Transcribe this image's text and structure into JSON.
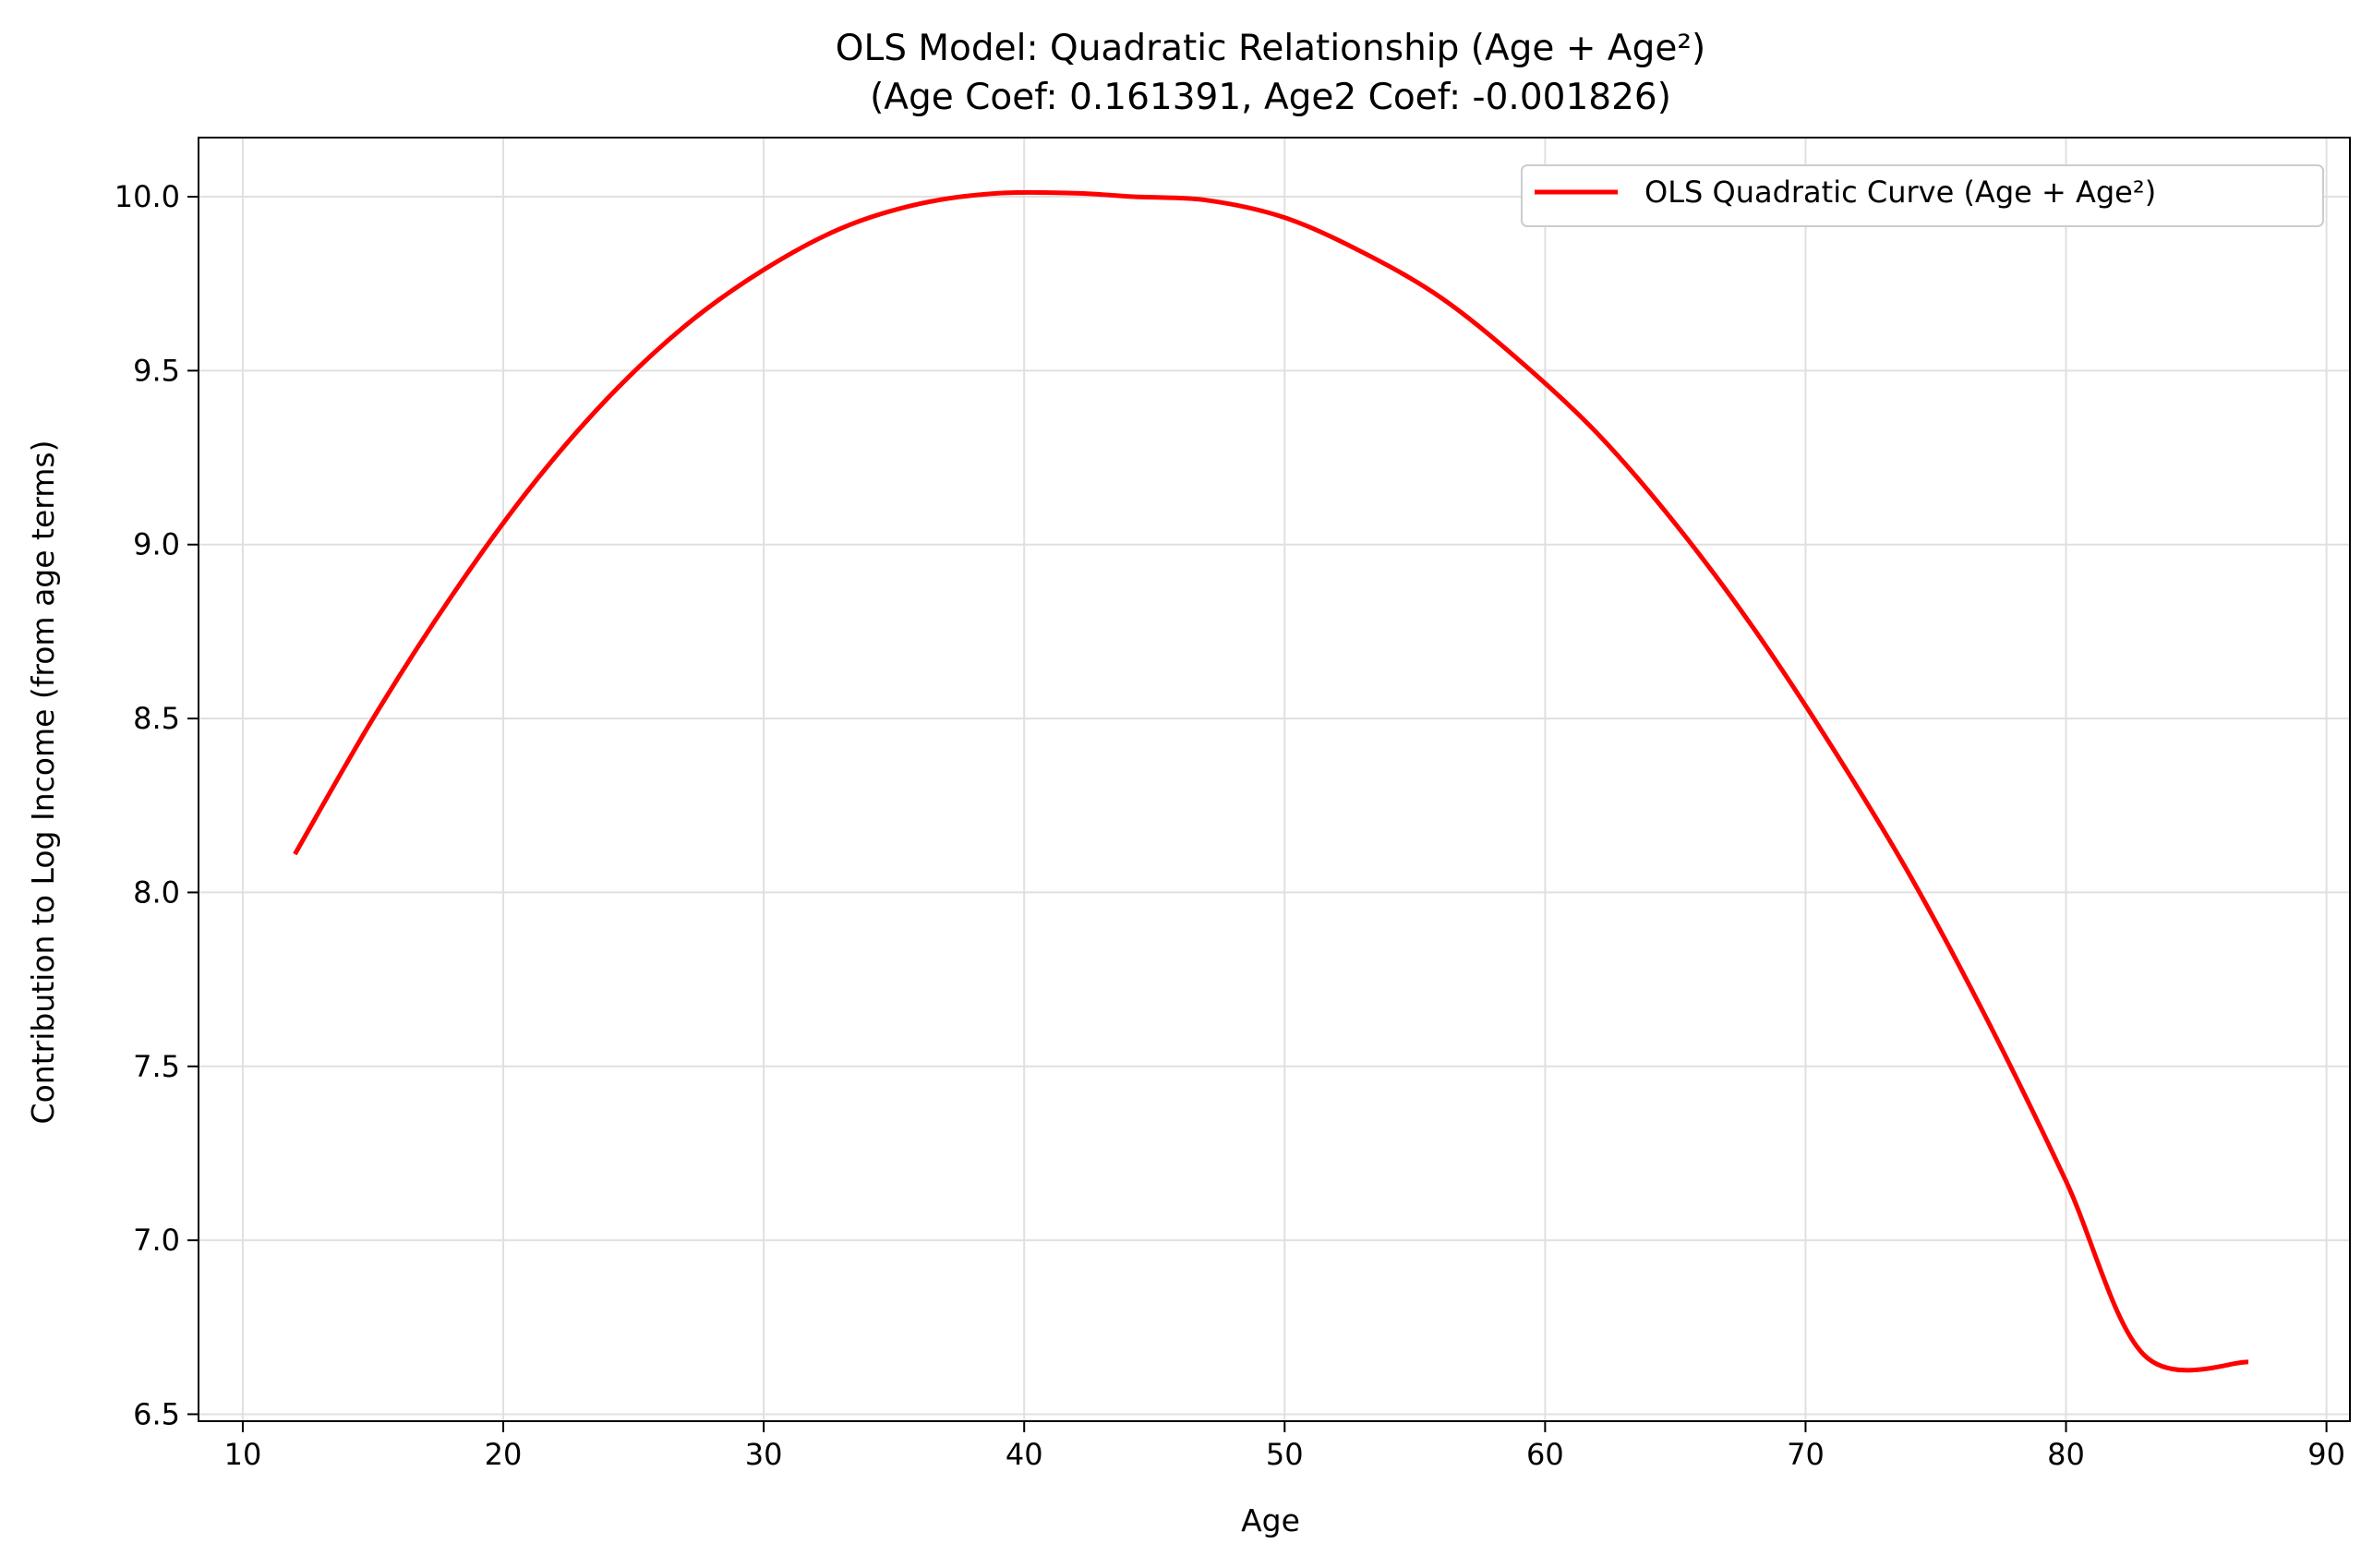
{
  "chart_data": {
    "type": "line",
    "title": "OLS Model: Quadratic Relationship (Age + Age²)",
    "subtitle": "(Age Coef: 0.161391, Age2 Coef: -0.001826)",
    "xlabel": "Age",
    "ylabel": "Contribution to Log Income (from age terms)",
    "xlim": [
      8.3,
      90.9
    ],
    "ylim": [
      6.48,
      10.17
    ],
    "xticks": [
      10,
      20,
      30,
      40,
      50,
      60,
      70,
      80,
      90
    ],
    "yticks": [
      6.5,
      7.0,
      7.5,
      8.0,
      8.5,
      9.0,
      9.5,
      10.0
    ],
    "xtick_labels": [
      "10",
      "20",
      "30",
      "40",
      "50",
      "60",
      "70",
      "80",
      "90"
    ],
    "ytick_labels": [
      "6.5",
      "7.0",
      "7.5",
      "8.0",
      "8.5",
      "9.0",
      "9.5",
      "10.0"
    ],
    "grid": true,
    "legend_position": "upper right",
    "series": [
      {
        "name": "OLS Quadratic Curve (Age + Age²)",
        "color": "#ff0000",
        "x": [
          12,
          15,
          18,
          21,
          24,
          27,
          30,
          33,
          36,
          39,
          42,
          44.2,
          47,
          50,
          53,
          56,
          59,
          62,
          65,
          68,
          71,
          74,
          77,
          80,
          83,
          87
        ],
        "y": [
          8.11,
          8.5,
          8.85,
          9.16,
          9.42,
          9.63,
          9.79,
          9.91,
          9.98,
          10.01,
          10.01,
          10.0,
          9.99,
          9.94,
          9.84,
          9.71,
          9.53,
          9.32,
          9.06,
          8.76,
          8.42,
          8.05,
          7.63,
          7.17,
          6.67,
          6.65
        ]
      }
    ]
  }
}
